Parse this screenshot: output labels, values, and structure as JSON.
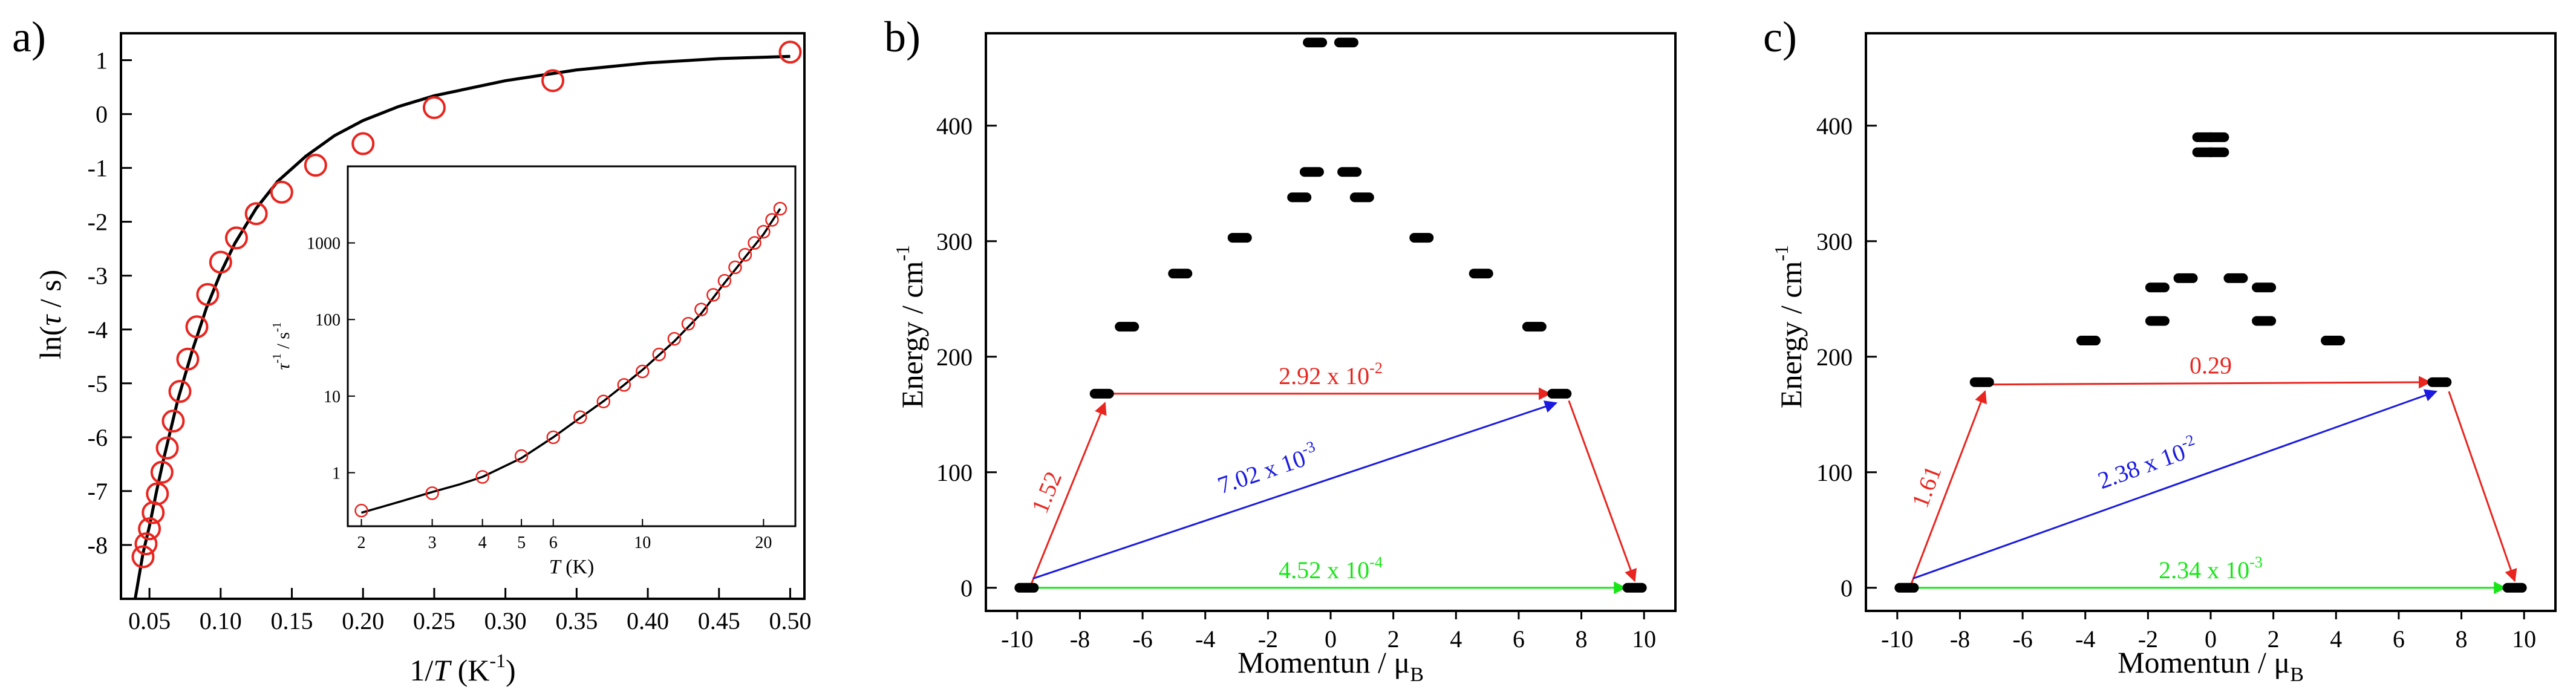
{
  "chart_data": [
    {
      "type": "scatter",
      "panel_label": "a)",
      "xlabel": {
        "main": "1/",
        "var": "T",
        "unit_open": " (K",
        "sup": "-1",
        "unit_close": ")"
      },
      "ylabel": {
        "main": "ln(",
        "var": "τ",
        "rest": " / s)"
      },
      "xlim": [
        0.03,
        0.51
      ],
      "ylim": [
        -9.0,
        1.5
      ],
      "xticks": [
        "0.05",
        "0.10",
        "0.15",
        "0.20",
        "0.25",
        "0.30",
        "0.35",
        "0.40",
        "0.45",
        "0.50"
      ],
      "yticks": [
        "-8",
        "-7",
        "-6",
        "-5",
        "-4",
        "-3",
        "-2",
        "-1",
        "0",
        "1"
      ],
      "series": [
        {
          "name": "experimental",
          "marker": "open-circle",
          "color": "#e8251f",
          "x": [
            0.0455,
            0.0476,
            0.05,
            0.0526,
            0.0556,
            0.0588,
            0.0625,
            0.0667,
            0.0714,
            0.0769,
            0.0833,
            0.0909,
            0.1,
            0.1111,
            0.125,
            0.1429,
            0.1667,
            0.2,
            0.25,
            0.3333,
            0.5
          ],
          "y": [
            -8.22,
            -7.98,
            -7.7,
            -7.4,
            -7.05,
            -6.65,
            -6.2,
            -5.7,
            -5.15,
            -4.55,
            -3.95,
            -3.35,
            -2.75,
            -2.3,
            -1.85,
            -1.45,
            -0.95,
            -0.55,
            0.12,
            0.62,
            1.15
          ]
        },
        {
          "name": "fit",
          "line": true,
          "color": "#000000",
          "x": [
            0.04,
            0.0455,
            0.05,
            0.055,
            0.06,
            0.065,
            0.07,
            0.08,
            0.09,
            0.1,
            0.11,
            0.125,
            0.14,
            0.16,
            0.18,
            0.2,
            0.225,
            0.25,
            0.3,
            0.35,
            0.4,
            0.45,
            0.5
          ],
          "y": [
            -9.0,
            -8.15,
            -7.65,
            -7.0,
            -6.4,
            -5.85,
            -5.3,
            -4.4,
            -3.6,
            -2.95,
            -2.4,
            -1.75,
            -1.25,
            -0.78,
            -0.4,
            -0.12,
            0.14,
            0.34,
            0.62,
            0.82,
            0.95,
            1.03,
            1.07
          ]
        }
      ],
      "inset": {
        "xlabel": {
          "var": "T",
          "unit": " (K)"
        },
        "ylabel": {
          "var": "τ",
          "sup": "-1",
          "unit": " / s",
          "sup2": "-1"
        },
        "xscale": "log",
        "yscale": "log",
        "xlim": [
          1.85,
          24
        ],
        "ylim": [
          0.2,
          10000
        ],
        "xticks": [
          "2",
          "3",
          "4",
          "5",
          "6",
          "10",
          "20"
        ],
        "yticks": [
          "1",
          "10",
          "100",
          "1000"
        ],
        "series": [
          {
            "name": "experimental",
            "marker": "open-circle",
            "color": "#e8251f",
            "x": [
              2,
              3,
              4,
              5,
              6,
              7,
              8,
              9,
              10,
              11,
              12,
              13,
              14,
              15,
              16,
              17,
              18,
              19,
              20,
              21,
              22
            ],
            "y": [
              0.32,
              0.54,
              0.88,
              1.65,
              2.9,
              5.3,
              8.5,
              14,
              21,
              35,
              56,
              88,
              135,
              210,
              320,
              480,
              700,
              1000,
              1400,
              2000,
              2800
            ]
          },
          {
            "name": "fit",
            "line": true,
            "color": "#000000",
            "x": [
              2,
              2.5,
              3,
              3.5,
              4,
              5,
              6,
              7,
              8,
              9,
              10,
              12,
              14,
              16,
              18,
              20,
              22
            ],
            "y": [
              0.3,
              0.42,
              0.56,
              0.7,
              0.88,
              1.55,
              2.9,
              5.2,
              8.6,
              14,
              22,
              52,
              120,
              300,
              650,
              1300,
              2800
            ]
          }
        ]
      }
    },
    {
      "type": "scatter",
      "panel_label": "b)",
      "xlabel": {
        "main": "Momentun / μ",
        "sub": "B"
      },
      "ylabel": {
        "main": "Energy / cm",
        "sup": "-1"
      },
      "xlim": [
        -11,
        11
      ],
      "ylim": [
        -20,
        480
      ],
      "xticks": [
        "-10",
        "-8",
        "-6",
        "-4",
        "-2",
        "0",
        "2",
        "4",
        "6",
        "8",
        "10"
      ],
      "yticks": [
        "0",
        "100",
        "200",
        "300",
        "400"
      ],
      "levels": [
        {
          "x": -9.7,
          "y": 0
        },
        {
          "x": 9.7,
          "y": 0
        },
        {
          "x": -7.3,
          "y": 168
        },
        {
          "x": 7.3,
          "y": 168
        },
        {
          "x": -6.5,
          "y": 226
        },
        {
          "x": 6.5,
          "y": 226
        },
        {
          "x": -4.8,
          "y": 272
        },
        {
          "x": 4.8,
          "y": 272
        },
        {
          "x": -2.9,
          "y": 303
        },
        {
          "x": 2.9,
          "y": 303
        },
        {
          "x": -1.0,
          "y": 338
        },
        {
          "x": 1.0,
          "y": 338
        },
        {
          "x": -0.6,
          "y": 360
        },
        {
          "x": 0.6,
          "y": 360
        },
        {
          "x": -0.5,
          "y": 472
        },
        {
          "x": 0.5,
          "y": 472
        }
      ],
      "transitions": [
        {
          "from": [
            -9.6,
            0
          ],
          "to": [
            -7.2,
            160
          ],
          "color": "#e8251f",
          "label": "1.52",
          "exp": ""
        },
        {
          "from": [
            -7.0,
            168
          ],
          "to": [
            7.0,
            168
          ],
          "color": "#e8251f",
          "label": "2.92 x 10",
          "exp": "-2"
        },
        {
          "from": [
            -9.5,
            8
          ],
          "to": [
            7.2,
            160
          ],
          "color": "#1a1ae0",
          "label": "7.02 x 10",
          "exp": "-3"
        },
        {
          "from": [
            -9.4,
            0
          ],
          "to": [
            9.4,
            0
          ],
          "color": "#19e619",
          "label": "4.52 x 10",
          "exp": "-4"
        },
        {
          "from": [
            7.6,
            162
          ],
          "to": [
            9.7,
            6
          ],
          "color": "#e8251f",
          "label": "",
          "exp": ""
        }
      ]
    },
    {
      "type": "scatter",
      "panel_label": "c)",
      "xlabel": {
        "main": "Momentun / μ",
        "sub": "B"
      },
      "ylabel": {
        "main": "Energy / cm",
        "sup": "-1"
      },
      "xlim": [
        -11,
        11
      ],
      "ylim": [
        -20,
        480
      ],
      "xticks": [
        "-10",
        "-8",
        "-6",
        "-4",
        "-2",
        "0",
        "2",
        "4",
        "6",
        "8",
        "10"
      ],
      "yticks": [
        "0",
        "100",
        "200",
        "300",
        "400"
      ],
      "levels": [
        {
          "x": -9.7,
          "y": 0
        },
        {
          "x": 9.7,
          "y": 0
        },
        {
          "x": -7.3,
          "y": 178
        },
        {
          "x": 7.3,
          "y": 178
        },
        {
          "x": -3.9,
          "y": 214
        },
        {
          "x": 3.9,
          "y": 214
        },
        {
          "x": -1.7,
          "y": 231
        },
        {
          "x": 1.7,
          "y": 231
        },
        {
          "x": -1.7,
          "y": 260
        },
        {
          "x": 1.7,
          "y": 260
        },
        {
          "x": -0.8,
          "y": 268
        },
        {
          "x": 0.8,
          "y": 268
        },
        {
          "x": -0.2,
          "y": 377
        },
        {
          "x": 0.2,
          "y": 377
        },
        {
          "x": -0.2,
          "y": 390
        },
        {
          "x": 0.2,
          "y": 390
        }
      ],
      "transitions": [
        {
          "from": [
            -9.6,
            0
          ],
          "to": [
            -7.2,
            170
          ],
          "color": "#e8251f",
          "label": "1.61",
          "exp": ""
        },
        {
          "from": [
            -7.0,
            176
          ],
          "to": [
            7.0,
            178
          ],
          "color": "#e8251f",
          "label": "0.29",
          "exp": ""
        },
        {
          "from": [
            -9.5,
            8
          ],
          "to": [
            7.2,
            170
          ],
          "color": "#1a1ae0",
          "label": "2.38 x 10",
          "exp": "-2"
        },
        {
          "from": [
            -9.4,
            0
          ],
          "to": [
            9.4,
            0
          ],
          "color": "#19e619",
          "label": "2.34 x 10",
          "exp": "-3"
        },
        {
          "from": [
            7.6,
            170
          ],
          "to": [
            9.7,
            6
          ],
          "color": "#e8251f",
          "label": "",
          "exp": ""
        }
      ]
    }
  ]
}
